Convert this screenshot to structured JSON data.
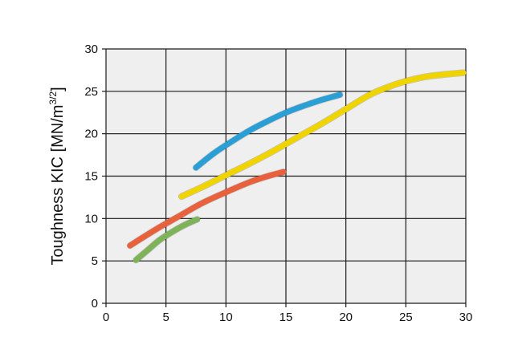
{
  "chart_data": {
    "type": "line",
    "ylabel": "Toughness KIC [MN/m",
    "ylabel_sup": "3/2",
    "ylabel_end": "]",
    "xlim": [
      0,
      30
    ],
    "ylim": [
      0,
      30
    ],
    "x_ticks": [
      0,
      5,
      10,
      15,
      20,
      25,
      30
    ],
    "y_ticks": [
      0,
      5,
      10,
      15,
      20,
      25,
      30
    ],
    "grid": true,
    "plot_background": "#efefef",
    "series": [
      {
        "color": "#2a9fd6",
        "points": [
          [
            7.5,
            16.0
          ],
          [
            9,
            17.7
          ],
          [
            10.5,
            19.1
          ],
          [
            12,
            20.4
          ],
          [
            13.5,
            21.5
          ],
          [
            15,
            22.5
          ],
          [
            16.5,
            23.3
          ],
          [
            18,
            24.0
          ],
          [
            19.5,
            24.6
          ]
        ]
      },
      {
        "color": "#f0d400",
        "points": [
          [
            6.3,
            12.6
          ],
          [
            8,
            13.7
          ],
          [
            10,
            15.1
          ],
          [
            12,
            16.5
          ],
          [
            14,
            18.0
          ],
          [
            16,
            19.6
          ],
          [
            18,
            21.2
          ],
          [
            20,
            22.9
          ],
          [
            22,
            24.6
          ],
          [
            23.5,
            25.5
          ],
          [
            25,
            26.2
          ],
          [
            27,
            26.8
          ],
          [
            29.8,
            27.2
          ]
        ]
      },
      {
        "color": "#e8603c",
        "points": [
          [
            2,
            6.8
          ],
          [
            3,
            7.7
          ],
          [
            4.5,
            9.0
          ],
          [
            6,
            10.2
          ],
          [
            8,
            11.8
          ],
          [
            10,
            13.1
          ],
          [
            12,
            14.3
          ],
          [
            13.5,
            15.0
          ],
          [
            14.8,
            15.5
          ]
        ]
      },
      {
        "color": "#7fb35a",
        "points": [
          [
            2.5,
            5.1
          ],
          [
            3.5,
            6.3
          ],
          [
            4.5,
            7.5
          ],
          [
            5.5,
            8.4
          ],
          [
            6.5,
            9.2
          ],
          [
            7.6,
            9.9
          ]
        ]
      }
    ]
  }
}
